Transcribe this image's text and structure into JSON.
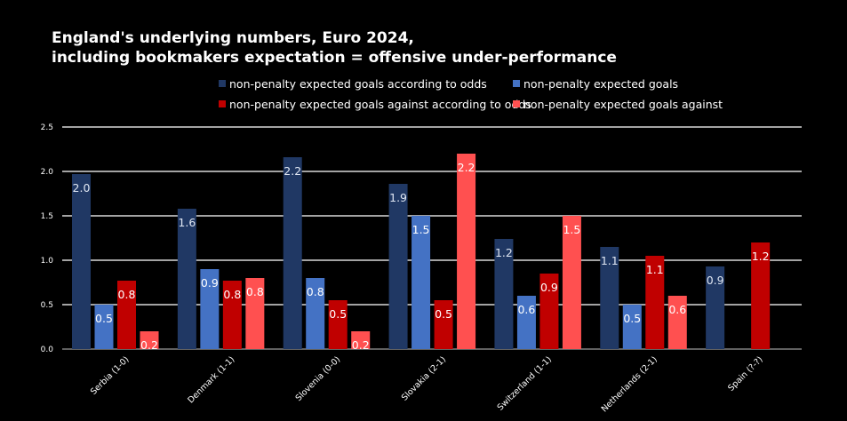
{
  "chart_data": {
    "type": "bar",
    "title": [
      "England's underlying numbers, Euro 2024,",
      "including bookmakers expectation = offensive under-performance"
    ],
    "categories": [
      "Serbia (1-0)",
      "Denmark (1-1)",
      "Slovenia (0-0)",
      "Slovakia (2-1)",
      "Switzerland (1-1)",
      "Netherlands (2-1)",
      "Spain (?-?)"
    ],
    "ylim": [
      0,
      2.5
    ],
    "yticks": [
      "0.0",
      "0.5",
      "1.0",
      "1.5",
      "2.0",
      "2.5"
    ],
    "grid": true,
    "legend_position": "top",
    "series": [
      {
        "name": "non-penalty expected goals according to odds",
        "color": "#203864",
        "values": [
          1.97,
          1.58,
          2.16,
          1.86,
          1.24,
          1.15,
          0.93
        ],
        "labels": [
          "2.0",
          "1.6",
          "2.2",
          "1.9",
          "1.2",
          "1.1",
          "0.9"
        ]
      },
      {
        "name": "non-penalty expected goals",
        "color": "#4472C4",
        "values": [
          0.5,
          0.9,
          0.8,
          1.5,
          0.6,
          0.5,
          null
        ],
        "labels": [
          "0.5",
          "0.9",
          "0.8",
          "1.5",
          "0.6",
          "0.5",
          null
        ]
      },
      {
        "name": "non-penalty expected goals against according to odds",
        "color": "#C00000",
        "values": [
          0.77,
          0.77,
          0.55,
          0.55,
          0.85,
          1.05,
          1.2
        ],
        "labels": [
          "0.8",
          "0.8",
          "0.5",
          "0.5",
          "0.9",
          "1.1",
          "1.2"
        ]
      },
      {
        "name": "non-penalty expected goals against",
        "color": "#FF5050",
        "values": [
          0.2,
          0.8,
          0.2,
          2.2,
          1.5,
          0.6,
          null
        ],
        "labels": [
          "0.2",
          "0.8",
          "0.2",
          "2.2",
          "1.5",
          "0.6",
          null
        ]
      }
    ]
  }
}
